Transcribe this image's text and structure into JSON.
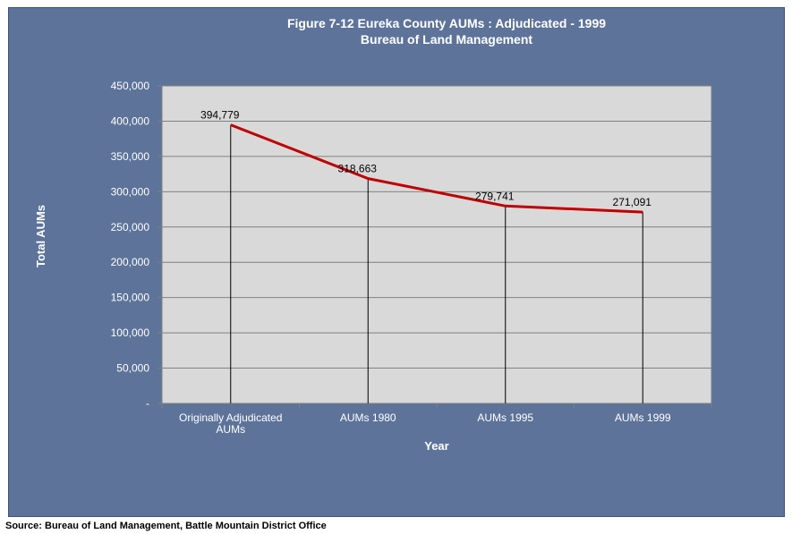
{
  "source_note": "Source: Bureau of Land Management, Battle Mountain District Office",
  "chart_data": {
    "type": "line",
    "title": "Figure 7-12 Eureka County AUMs :  Adjudicated - 1999",
    "subtitle": "Bureau of Land Management",
    "xlabel": "Year",
    "ylabel": "Total AUMs",
    "categories": [
      [
        "Originally Adjudicated",
        "AUMs"
      ],
      [
        "AUMs 1980"
      ],
      [
        "AUMs 1995"
      ],
      [
        "AUMs 1999"
      ]
    ],
    "values": [
      394779,
      318663,
      279741,
      271091
    ],
    "data_labels": [
      "394,779",
      "318,663",
      "279,741",
      "271,091"
    ],
    "ylim": [
      0,
      450000
    ],
    "yticks": [
      0,
      50000,
      100000,
      150000,
      200000,
      250000,
      300000,
      350000,
      400000,
      450000
    ],
    "ytick_labels": [
      "-",
      "50,000",
      "100,000",
      "150,000",
      "200,000",
      "250,000",
      "300,000",
      "350,000",
      "400,000",
      "450,000"
    ],
    "drop_lines": true,
    "grid": true,
    "colors": {
      "background": "#5d7399",
      "plot_area": "#d9d9d9",
      "line": "#c00000",
      "gridline": "#808080"
    }
  }
}
